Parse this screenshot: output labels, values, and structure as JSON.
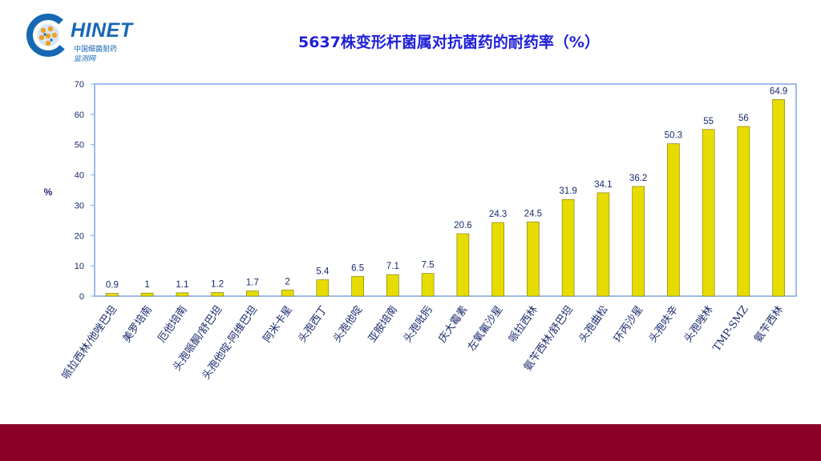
{
  "logo": {
    "brand": "HINET",
    "line1": "中国细菌耐药",
    "line2": "监测网"
  },
  "colors": {
    "bar": "#e6dc00",
    "bar_edge": "#7a7200",
    "axis": "#7aa7e0",
    "label": "#1a2a6c",
    "footer": "#8b0029",
    "title": "#1f1fd8"
  },
  "chart_data": {
    "type": "bar",
    "title": "5637株变形杆菌属对抗菌药的耐药率（%）",
    "xlabel": "",
    "ylabel": "%",
    "ylim": [
      0,
      70
    ],
    "yticks": [
      "0",
      "10",
      "20",
      "30",
      "40",
      "50",
      "60",
      "70"
    ],
    "grid": false,
    "categories": [
      "哌拉西林/他唑巴坦",
      "美罗培南",
      "厄他培南",
      "头孢哌酮/舒巴坦",
      "头孢他啶-阿维巴坦",
      "阿米卡星",
      "头孢西丁",
      "头孢他啶",
      "亚胺培南",
      "头孢吡肟",
      "庆大霉素",
      "左氧氟沙星",
      "哌拉西林",
      "氨苄西林/舒巴坦",
      "头孢曲松",
      "环丙沙星",
      "头孢呋辛",
      "头孢唑林",
      "TMP-SMZ",
      "氨苄西林"
    ],
    "values": [
      0.9,
      1,
      1.1,
      1.2,
      1.7,
      2,
      5.4,
      6.5,
      7.1,
      7.5,
      20.6,
      24.3,
      24.5,
      31.9,
      34.1,
      36.2,
      50.3,
      55,
      56,
      64.9
    ],
    "data_labels": [
      "0.9",
      "1",
      "1.1",
      "1.2",
      "1.7",
      "2",
      "5.4",
      "6.5",
      "7.1",
      "7.5",
      "20.6",
      "24.3",
      "24.5",
      "31.9",
      "34.1",
      "36.2",
      "50.3",
      "55",
      "56",
      "64.9"
    ]
  }
}
